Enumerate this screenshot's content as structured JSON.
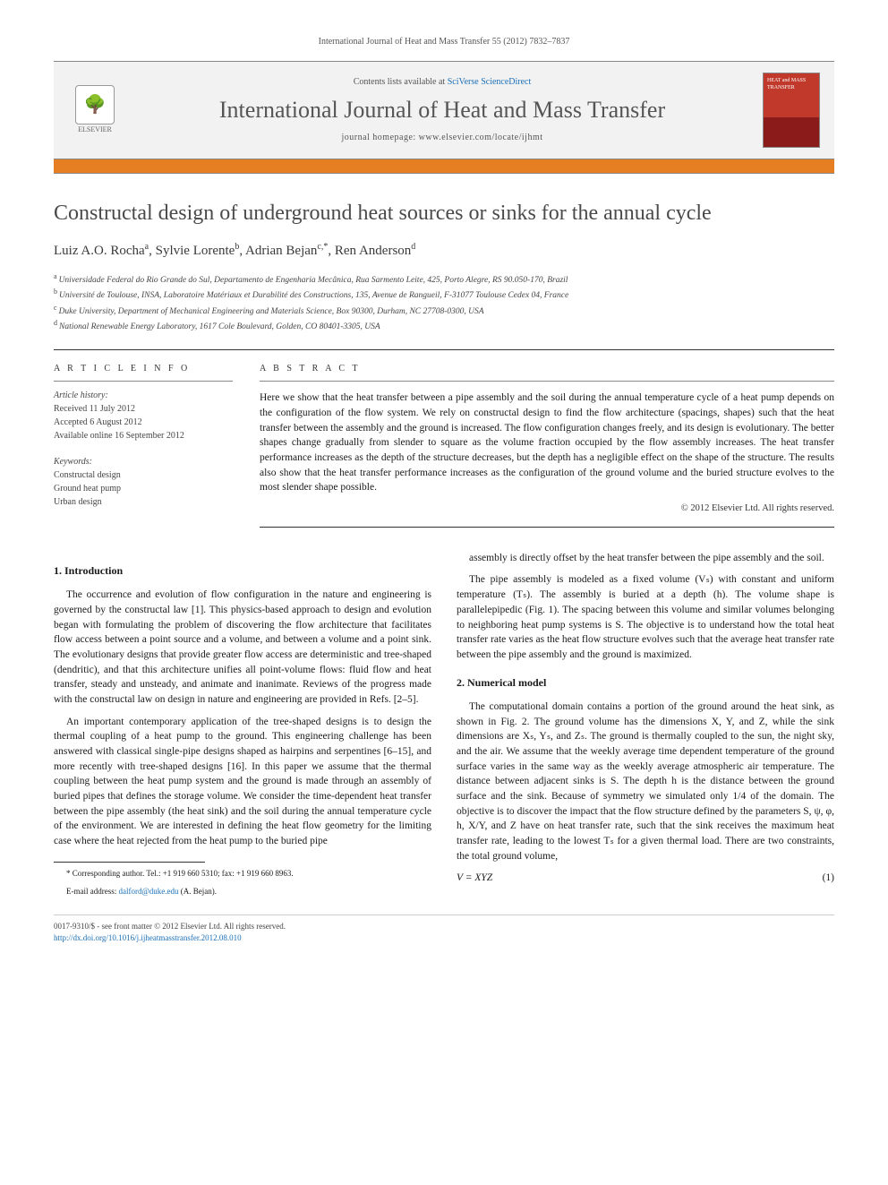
{
  "page_header": "International Journal of Heat and Mass Transfer 55 (2012) 7832–7837",
  "header": {
    "contents_prefix": "Contents lists available at ",
    "contents_link": "SciVerse ScienceDirect",
    "journal": "International Journal of Heat and Mass Transfer",
    "homepage": "journal homepage: www.elsevier.com/locate/ijhmt",
    "publisher": "ELSEVIER",
    "cover_text": "HEAT and MASS TRANSFER"
  },
  "colors": {
    "accent_bar": "#e67e22",
    "link": "#1a6fb5",
    "cover_top": "#c0392b",
    "text_gray": "#555"
  },
  "title": "Constructal design of underground heat sources or sinks for the annual cycle",
  "authors_html": "Luiz A.O. Rocha ᵃ, Sylvie Lorente ᵇ, Adrian Bejan ᶜ·*, Ren Anderson ᵈ",
  "authors": [
    {
      "name": "Luiz A.O. Rocha",
      "sup": "a"
    },
    {
      "name": "Sylvie Lorente",
      "sup": "b"
    },
    {
      "name": "Adrian Bejan",
      "sup": "c,*"
    },
    {
      "name": "Ren Anderson",
      "sup": "d"
    }
  ],
  "affiliations": [
    {
      "sup": "a",
      "text": "Universidade Federal do Rio Grande do Sul, Departamento de Engenharia Mecânica, Rua Sarmento Leite, 425, Porto Alegre, RS 90.050-170, Brazil"
    },
    {
      "sup": "b",
      "text": "Université de Toulouse, INSA, Laboratoire Matériaux et Durabilité des Constructions, 135, Avenue de Rangueil, F-31077 Toulouse Cedex 04, France"
    },
    {
      "sup": "c",
      "text": "Duke University, Department of Mechanical Engineering and Materials Science, Box 90300, Durham, NC 27708-0300, USA"
    },
    {
      "sup": "d",
      "text": "National Renewable Energy Laboratory, 1617 Cole Boulevard, Golden, CO 80401-3305, USA"
    }
  ],
  "article_info": {
    "head": "A R T I C L E   I N F O",
    "history_label": "Article history:",
    "received": "Received 11 July 2012",
    "accepted": "Accepted 6 August 2012",
    "online": "Available online 16 September 2012",
    "keywords_label": "Keywords:",
    "keywords": [
      "Constructal design",
      "Ground heat pump",
      "Urban design"
    ]
  },
  "abstract": {
    "head": "A B S T R A C T",
    "text": "Here we show that the heat transfer between a pipe assembly and the soil during the annual temperature cycle of a heat pump depends on the configuration of the flow system. We rely on constructal design to find the flow architecture (spacings, shapes) such that the heat transfer between the assembly and the ground is increased. The flow configuration changes freely, and its design is evolutionary. The better shapes change gradually from slender to square as the volume fraction occupied by the flow assembly increases. The heat transfer performance increases as the depth of the structure decreases, but the depth has a negligible effect on the shape of the structure. The results also show that the heat transfer performance increases as the configuration of the ground volume and the buried structure evolves to the most slender shape possible.",
    "copyright": "© 2012 Elsevier Ltd. All rights reserved."
  },
  "sections": {
    "s1_head": "1. Introduction",
    "s1_p1": "The occurrence and evolution of flow configuration in the nature and engineering is governed by the constructal law [1]. This physics-based approach to design and evolution began with formulating the problem of discovering the flow architecture that facilitates flow access between a point source and a volume, and between a volume and a point sink. The evolutionary designs that provide greater flow access are deterministic and tree-shaped (dendritic), and that this architecture unifies all point-volume flows: fluid flow and heat transfer, steady and unsteady, and animate and inanimate. Reviews of the progress made with the constructal law on design in nature and engineering are provided in Refs. [2–5].",
    "s1_p2": "An important contemporary application of the tree-shaped designs is to design the thermal coupling of a heat pump to the ground. This engineering challenge has been answered with classical single-pipe designs shaped as hairpins and serpentines [6–15], and more recently with tree-shaped designs [16]. In this paper we assume that the thermal coupling between the heat pump system and the ground is made through an assembly of buried pipes that defines the storage volume. We consider the time-dependent heat transfer between the pipe assembly (the heat sink) and the soil during the annual temperature cycle of the environment. We are interested in defining the heat flow geometry for the limiting case where the heat rejected from the heat pump to the buried pipe",
    "s1_p3": "assembly is directly offset by the heat transfer between the pipe assembly and the soil.",
    "s1_p4": "The pipe assembly is modeled as a fixed volume (Vₛ) with constant and uniform temperature (Tₛ). The assembly is buried at a depth (h). The volume shape is parallelepipedic (Fig. 1). The spacing between this volume and similar volumes belonging to neighboring heat pump systems is S. The objective is to understand how the total heat transfer rate varies as the heat flow structure evolves such that the average heat transfer rate between the pipe assembly and the ground is maximized.",
    "s2_head": "2. Numerical model",
    "s2_p1": "The computational domain contains a portion of the ground around the heat sink, as shown in Fig. 2. The ground volume has the dimensions X, Y, and Z, while the sink dimensions are Xₛ, Yₛ, and Zₛ. The ground is thermally coupled to the sun, the night sky, and the air. We assume that the weekly average time dependent temperature of the ground surface varies in the same way as the weekly average atmospheric air temperature. The distance between adjacent sinks is S. The depth h is the distance between the ground surface and the sink. Because of symmetry we simulated only 1/4 of the domain. The objective is to discover the impact that the flow structure defined by the parameters S, ψ, φ, h, X/Y, and Z have on heat transfer rate, such that the sink receives the maximum heat transfer rate, leading to the lowest Tₛ for a given thermal load. There are two constraints, the total ground volume,",
    "eq1": "V = XYZ",
    "eq1_num": "(1)"
  },
  "footnote": {
    "corr": "* Corresponding author. Tel.: +1 919 660 5310; fax: +1 919 660 8963.",
    "email_label": "E-mail address:",
    "email": "dalford@duke.edu",
    "email_owner": "(A. Bejan)."
  },
  "footer": {
    "issn": "0017-9310/$ - see front matter © 2012 Elsevier Ltd. All rights reserved.",
    "doi": "http://dx.doi.org/10.1016/j.ijheatmasstransfer.2012.08.010"
  }
}
